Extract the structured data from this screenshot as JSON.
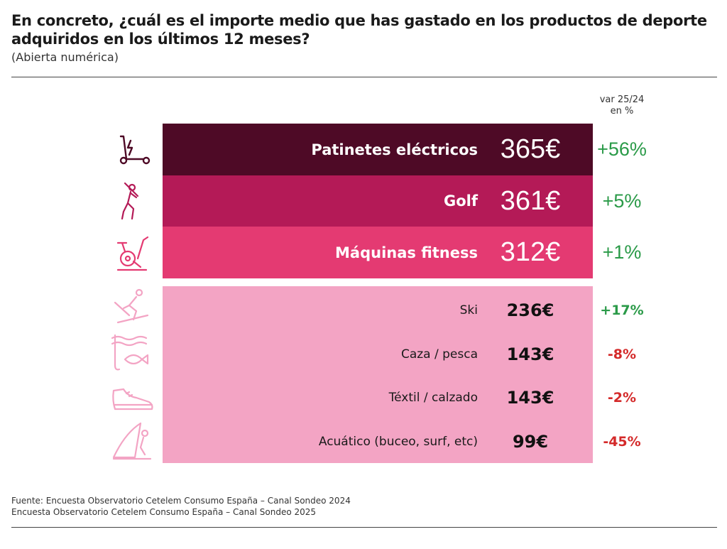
{
  "header": {
    "title": "En concreto, ¿cuál es el importe medio que has gastado en los productos de deporte adquiridos en los últimos 12 meses?",
    "subtitle": "(Abierta numérica)"
  },
  "var_header": {
    "line1": "var 25/24",
    "line2": "en %"
  },
  "colors": {
    "row1": "#4e0a26",
    "row2": "#b41a57",
    "row3": "#e43a72",
    "rows_small": "#f3a4c4",
    "positive": "#2a9a48",
    "negative": "#d42a2a"
  },
  "chart_data": {
    "type": "table",
    "title": "En concreto, ¿cuál es el importe medio que has gastado en los productos de deporte adquiridos en los últimos 12 meses?",
    "columns": [
      "",
      "",
      "var 25/24 en %"
    ],
    "rows": [
      {
        "icon": "electric-scooter-icon",
        "category": "Patinetes eléctricos",
        "value": 365,
        "value_label": "365€",
        "var": 56,
        "var_label": "+56%"
      },
      {
        "icon": "golf-icon",
        "category": "Golf",
        "value": 361,
        "value_label": "361€",
        "var": 5,
        "var_label": "+5%"
      },
      {
        "icon": "exercise-bike-icon",
        "category": "Máquinas fitness",
        "value": 312,
        "value_label": "312€",
        "var": 1,
        "var_label": "+1%"
      },
      {
        "icon": "skier-icon",
        "category": "Ski",
        "value": 236,
        "value_label": "236€",
        "var": 17,
        "var_label": "+17%"
      },
      {
        "icon": "fishing-icon",
        "category": "Caza / pesca",
        "value": 143,
        "value_label": "143€",
        "var": -8,
        "var_label": "-8%"
      },
      {
        "icon": "sneaker-icon",
        "category": "Téxtil / calzado",
        "value": 143,
        "value_label": "143€",
        "var": -2,
        "var_label": "-2%"
      },
      {
        "icon": "windsurf-icon",
        "category": "Acuático (buceo, surf, etc)",
        "value": 99,
        "value_label": "99€",
        "var": -45,
        "var_label": "-45%"
      }
    ]
  },
  "source": {
    "line1": "Fuente: Encuesta Observatorio Cetelem Consumo España – Canal Sondeo 2024",
    "line2": "Encuesta Observatorio Cetelem Consumo España – Canal Sondeo 2025"
  }
}
